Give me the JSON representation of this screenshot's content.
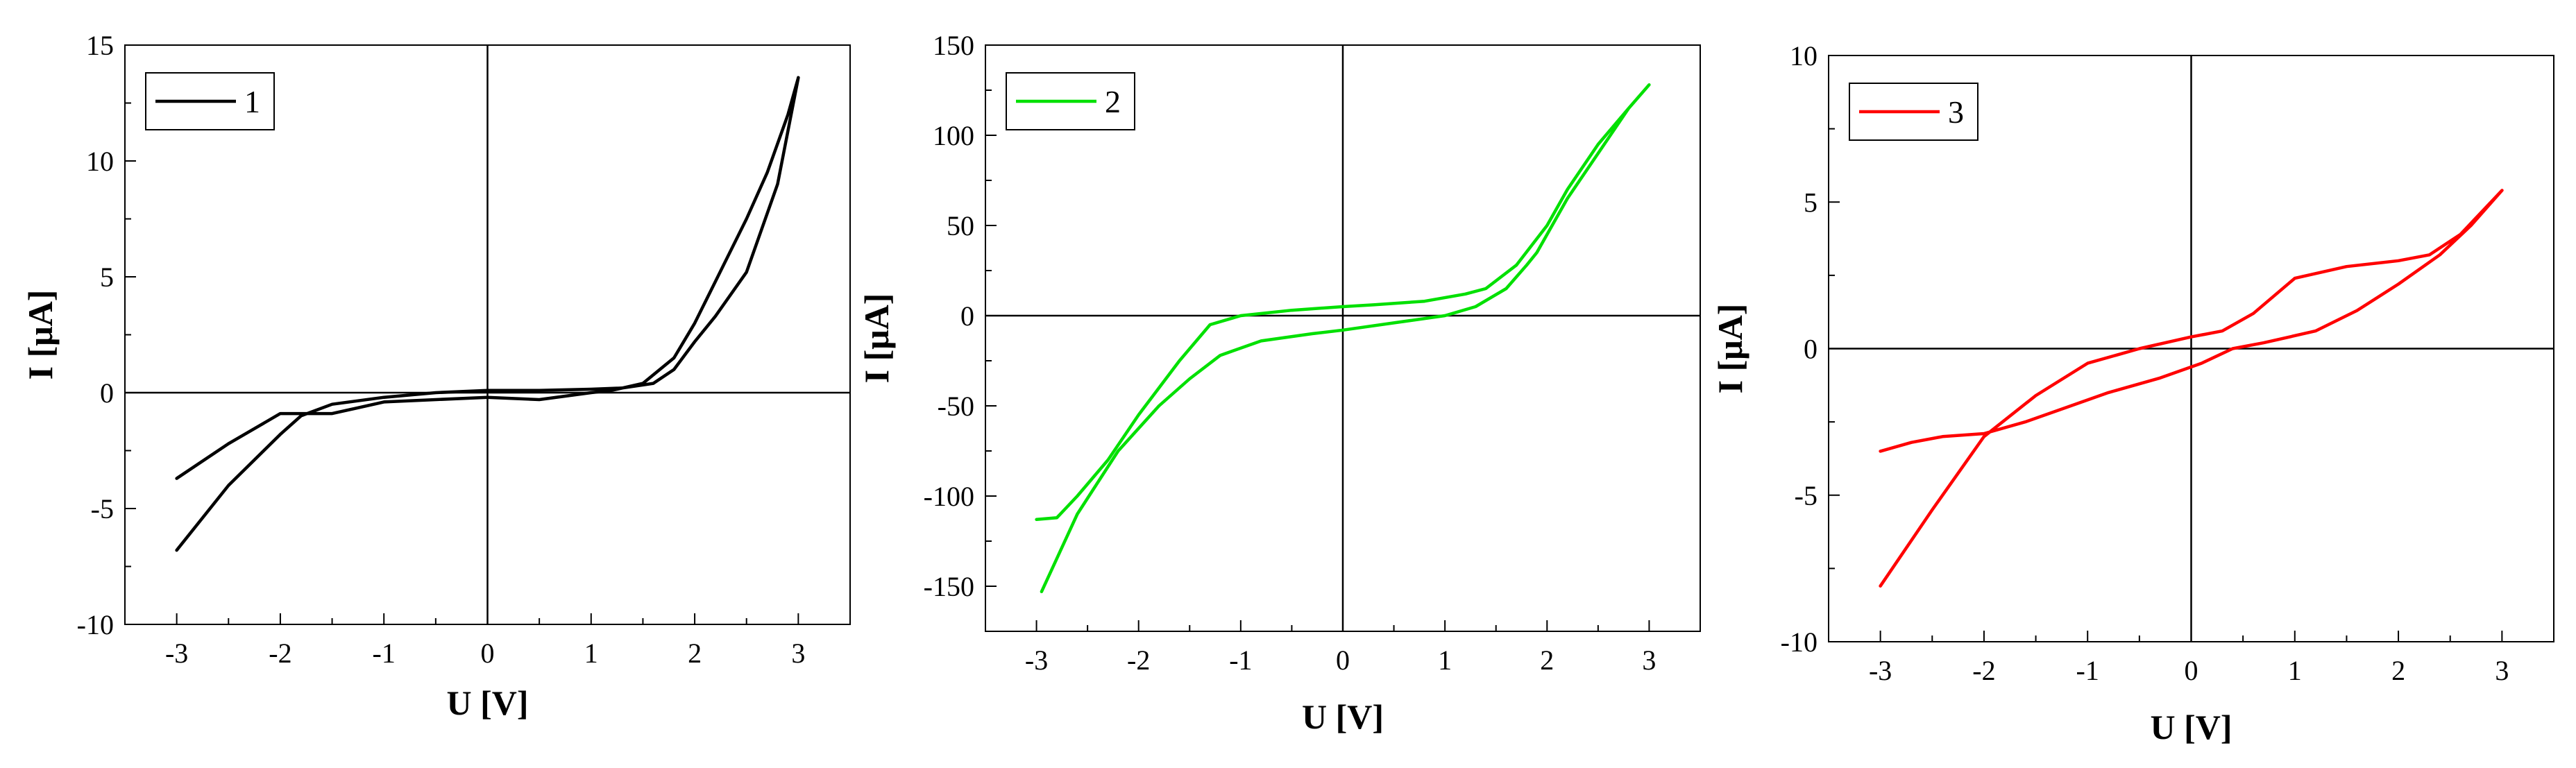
{
  "chart_data": [
    {
      "type": "line",
      "xlabel": "U [V]",
      "ylabel": "I [μA]",
      "xlim": [
        -3.5,
        3.5
      ],
      "ylim": [
        -10,
        15
      ],
      "xticks": [
        "-3",
        "-2",
        "-1",
        "0",
        "1",
        "2",
        "3"
      ],
      "yticks": [
        "-10",
        "-5",
        "0",
        "5",
        "10",
        "15"
      ],
      "grid": false,
      "legend_position": "top-left",
      "series": [
        {
          "name": "1",
          "color": "#000000",
          "x": [
            -3.0,
            -2.5,
            -2.0,
            -1.8,
            -1.5,
            -1.0,
            -0.5,
            0.0,
            0.5,
            1.0,
            1.3,
            1.6,
            1.8,
            2.0,
            2.2,
            2.5,
            2.8,
            3.0,
            2.9,
            2.7,
            2.5,
            2.2,
            2.0,
            1.8,
            1.5,
            1.2,
            1.0,
            0.5,
            0.0,
            -0.5,
            -1.0,
            -1.5,
            -2.0,
            -2.5,
            -3.0
          ],
          "y": [
            -6.8,
            -4.0,
            -1.8,
            -1.0,
            -0.5,
            -0.2,
            0.0,
            0.1,
            0.1,
            0.15,
            0.2,
            0.4,
            1.0,
            2.2,
            3.3,
            5.2,
            9.0,
            13.6,
            12.0,
            9.5,
            7.5,
            4.8,
            3.0,
            1.5,
            0.4,
            0.1,
            0.0,
            -0.3,
            -0.2,
            -0.3,
            -0.4,
            -0.9,
            -0.9,
            -2.2,
            -3.7
          ]
        }
      ]
    },
    {
      "type": "line",
      "xlabel": "U [V]",
      "ylabel": "I [μA]",
      "xlim": [
        -3.5,
        3.5
      ],
      "ylim": [
        -175,
        150
      ],
      "xticks": [
        "-3",
        "-2",
        "-1",
        "0",
        "1",
        "2",
        "3"
      ],
      "yticks": [
        "-150",
        "-100",
        "-50",
        "0",
        "50",
        "100",
        "150"
      ],
      "grid": false,
      "legend_position": "top-left",
      "series": [
        {
          "name": "2",
          "color": "#00e000",
          "x": [
            -2.95,
            -2.6,
            -2.2,
            -1.8,
            -1.5,
            -1.2,
            -0.8,
            -0.3,
            0.0,
            0.5,
            1.0,
            1.3,
            1.6,
            1.8,
            1.9,
            2.0,
            2.2,
            2.5,
            2.8,
            3.0,
            2.8,
            2.5,
            2.2,
            2.0,
            1.7,
            1.4,
            1.2,
            0.8,
            0.3,
            0.0,
            -0.5,
            -1.0,
            -1.3,
            -1.6,
            -2.0,
            -2.3,
            -2.6,
            -2.8,
            -3.0
          ],
          "y": [
            -153,
            -110,
            -75,
            -50,
            -35,
            -22,
            -14,
            -10,
            -8,
            -4,
            0,
            5,
            15,
            28,
            35,
            45,
            65,
            90,
            115,
            128,
            115,
            95,
            70,
            50,
            28,
            15,
            12,
            8,
            6,
            5,
            3,
            0,
            -5,
            -25,
            -55,
            -80,
            -100,
            -112,
            -113
          ]
        }
      ]
    },
    {
      "type": "line",
      "xlabel": "U [V]",
      "ylabel": "I [μA]",
      "xlim": [
        -3.5,
        3.5
      ],
      "ylim": [
        -10,
        10
      ],
      "xticks": [
        "-3",
        "-2",
        "-1",
        "0",
        "1",
        "2",
        "3"
      ],
      "yticks": [
        "-10",
        "-5",
        "0",
        "5",
        "10"
      ],
      "grid": false,
      "legend_position": "top-left",
      "series": [
        {
          "name": "3",
          "color": "#ff0000",
          "x": [
            -3.0,
            -2.5,
            -2.0,
            -1.5,
            -1.0,
            -0.5,
            0.0,
            0.3,
            0.6,
            1.0,
            1.5,
            2.0,
            2.3,
            2.6,
            3.0,
            2.7,
            2.4,
            2.0,
            1.6,
            1.2,
            0.7,
            0.4,
            0.1,
            -0.3,
            -0.8,
            -1.2,
            -1.6,
            -2.0,
            -2.4,
            -2.7,
            -3.0
          ],
          "y": [
            -8.1,
            -5.5,
            -3.0,
            -1.6,
            -0.5,
            0.0,
            0.4,
            0.6,
            1.2,
            2.4,
            2.8,
            3.0,
            3.2,
            3.9,
            5.4,
            4.2,
            3.2,
            2.2,
            1.3,
            0.6,
            0.2,
            0.0,
            -0.5,
            -1.0,
            -1.5,
            -2.0,
            -2.5,
            -2.9,
            -3.0,
            -3.2,
            -3.5
          ]
        }
      ]
    }
  ]
}
